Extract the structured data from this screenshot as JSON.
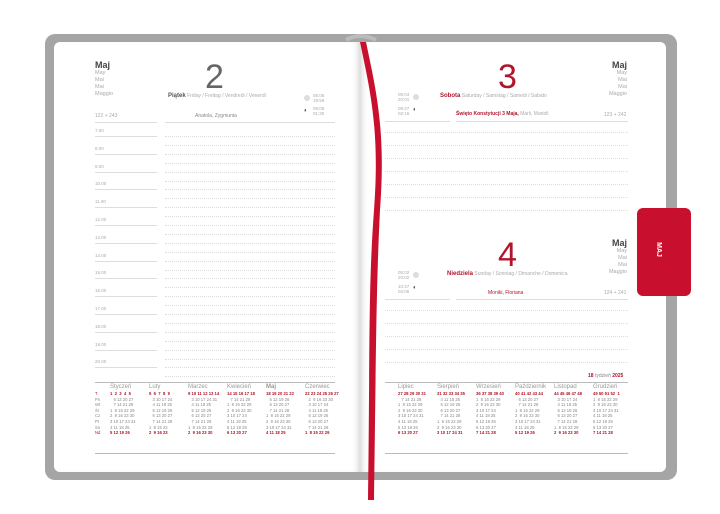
{
  "colors": {
    "accent": "#c8102e",
    "cover": "#a5a5a5"
  },
  "tab_label": "MAJ",
  "left": {
    "month": "Maj",
    "month_langs": [
      "May",
      "Mai",
      "Mai",
      "Maggio"
    ],
    "day_number": "2",
    "day_name": "Piątek",
    "day_langs": "Friday / Freitag / Vendredi / Venerdì",
    "sun": [
      "05:06",
      "19:59"
    ],
    "moon": [
      "09:06",
      "01:30"
    ],
    "day_count": "122 + 243",
    "names": "Anatola, Zygmunta",
    "hours": [
      "7.00",
      "8.00",
      "9.00",
      "10.00",
      "11.00",
      "12.00",
      "13.00",
      "14.00",
      "15.00",
      "16.00",
      "17.00",
      "18.00",
      "19.00",
      "20.00"
    ]
  },
  "right": {
    "day1": {
      "number": "3",
      "name": "Sobota",
      "langs": "Saturday / Samstag / Samedi / Sabato",
      "sun": [
        "05:04",
        "20:01"
      ],
      "moon": [
        "09:27",
        "02:16"
      ],
      "holiday": "Święto Konstytucji 3 Maja,",
      "names": "Marii, Marioli",
      "count": "123 + 242",
      "month": "Maj",
      "month_langs": [
        "May",
        "Mai",
        "Mai",
        "Maggio"
      ]
    },
    "day2": {
      "number": "4",
      "name": "Niedziela",
      "langs": "Sunday / Sonntag / Dimanche / Domenica",
      "sun": [
        "05:02",
        "20:02"
      ],
      "moon": [
        "10:27",
        "03:06"
      ],
      "names": "Moniki, Floriana",
      "count": "124 + 241",
      "month": "Maj",
      "month_langs": [
        "May",
        "Mai",
        "Mai",
        "Maggio"
      ]
    },
    "week": {
      "num": "18",
      "label": "tydzień",
      "year": "2025"
    }
  },
  "day_labels": [
    "T",
    "Pn",
    "Wt",
    "Śr",
    "Cz",
    "Pt",
    "So",
    "Nd"
  ],
  "calendar_left": [
    {
      "name": "Styczeń",
      "weeks": "1  2  3  4  5",
      "rows": [
        "   6 13 20 27",
        "   7 14 21 28",
        "1  8 15 22 29",
        "2  9 16 23 30",
        "3 10 17 24 31",
        "4 11 18 25",
        "5 12 19 26"
      ]
    },
    {
      "name": "Luty",
      "weeks": "5  6  7  8  9",
      "rows": [
        "   3 10 17 24",
        "   4 11 18 25",
        "   5 12 19 26",
        "   6 13 20 27",
        "   7 14 21 28",
        "1  8 15 22",
        "2  9 16 23"
      ]
    },
    {
      "name": "Marzec",
      "weeks": "9 10 11 12 13 14",
      "rows": [
        "   3 10 17 24 31",
        "   4 11 18 25",
        "   5 12 19 26",
        "   6 13 20 27",
        "   7 14 21 28",
        "1  8 15 22 29",
        "2  9 16 23 30"
      ]
    },
    {
      "name": "Kwiecień",
      "weeks": "14 15 16 17 18",
      "rows": [
        "   7 14 21 28",
        "1  8 15 22 29",
        "2  9 16 23 30",
        "3 10 17 24",
        "4 11 18 25",
        "5 12 19 26",
        "6 13 20 27"
      ]
    },
    {
      "name": "Maj",
      "weeks": "18 19 20 21 22",
      "rows": [
        "   5 12 19 26",
        "   6 13 20 27",
        "   7 14 21 28",
        "1  8 15 22 29",
        "2  9 16 23 30",
        "3 10 17 24 31",
        "4 11 18 25"
      ]
    },
    {
      "name": "Czerwiec",
      "weeks": "22 23 24 25 26 27",
      "rows": [
        "   2  9 16 23 30",
        "   3 10 17 24",
        "   4 11 18 25",
        "   5 12 19 26",
        "   6 13 20 27",
        "   7 14 21 28",
        "1  8 15 22 29"
      ]
    }
  ],
  "calendar_right": [
    {
      "name": "Lipiec",
      "weeks": "27 28 29 30 31",
      "rows": [
        "   7 14 21 28",
        "1  8 15 22 29",
        "2  9 16 23 30",
        "3 10 17 24 31",
        "4 11 18 25",
        "5 12 19 26",
        "6 13 20 27"
      ]
    },
    {
      "name": "Sierpień",
      "weeks": "31 32 33 34 35",
      "rows": [
        "   4 11 18 25",
        "   5 12 19 26",
        "   6 13 20 27",
        "   7 14 21 28",
        "1  8 15 22 29",
        "2  9 16 23 30",
        "3 10 17 24 31"
      ]
    },
    {
      "name": "Wrzesień",
      "weeks": "36 37 38 39 40",
      "rows": [
        "1  8 15 22 29",
        "2  9 16 23 30",
        "3 10 17 24",
        "4 11 18 25",
        "5 12 19 26",
        "6 13 20 27",
        "7 14 21 28"
      ]
    },
    {
      "name": "Październik",
      "weeks": "40 41 42 43 44",
      "rows": [
        "   6 13 20 27",
        "   7 14 21 28",
        "1  8 15 22 29",
        "2  9 16 23 30",
        "3 10 17 24 31",
        "4 11 18 25",
        "5 12 19 26"
      ]
    },
    {
      "name": "Listopad",
      "weeks": "44 45 46 47 48",
      "rows": [
        "   3 10 17 24",
        "   4 11 18 25",
        "   5 12 19 26",
        "   6 13 20 27",
        "   7 14 21 28",
        "1  8 15 22 29",
        "2  9 16 23 30"
      ]
    },
    {
      "name": "Grudzień",
      "weeks": "49 50 51 52  1",
      "rows": [
        "1  8 15 22 29",
        "2  9 16 23 30",
        "3 10 17 24 31",
        "4 11 18 25",
        "5 12 19 26",
        "6 13 20 27",
        "7 14 21 28"
      ]
    }
  ]
}
